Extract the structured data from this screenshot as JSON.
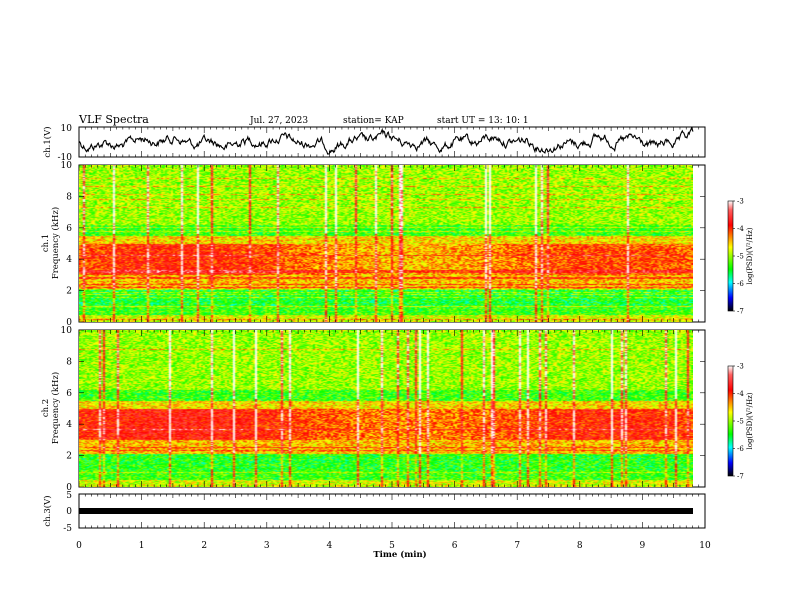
{
  "header": {
    "title": "VLF Spectra",
    "date": "Jul. 27, 2023",
    "station": "station= KAP",
    "start_ut": "start UT =  13: 10: 1"
  },
  "chart_data": [
    {
      "type": "line",
      "panel": "ch1-waveform",
      "ylabel": "ch.1(V)",
      "ylim": [
        -10,
        10
      ],
      "yticks": [
        "10",
        "-10"
      ],
      "xlim": [
        0,
        10
      ],
      "series_color": "#000000"
    },
    {
      "type": "heatmap",
      "panel": "ch1-spectrogram",
      "ylabel": "ch.1 Frequency (kHz)",
      "ylabel_top": "ch.1",
      "ylabel_main": "Frequency (kHz)",
      "ylim": [
        0,
        10
      ],
      "yticks": [
        "0",
        "2",
        "4",
        "6",
        "8",
        "10"
      ],
      "xlim": [
        0,
        9.8
      ],
      "colorbar": {
        "label": "log(PSD)(V²/Hz)",
        "range": [
          -7,
          -3
        ],
        "ticks": [
          "-3",
          "-4",
          "-5",
          "-6",
          "-7"
        ],
        "colors": [
          "#ff0000",
          "#ffff00",
          "#00ff00",
          "#00ffff",
          "#0000ff",
          "#000000"
        ]
      }
    },
    {
      "type": "heatmap",
      "panel": "ch2-spectrogram",
      "ylabel": "ch.2 Frequency (kHz)",
      "ylabel_top": "ch.2",
      "ylabel_main": "Frequency (kHz)",
      "ylim": [
        0,
        10
      ],
      "yticks": [
        "0",
        "2",
        "4",
        "6",
        "8",
        "10"
      ],
      "xlim": [
        0,
        9.8
      ],
      "colorbar": {
        "label": "log(PSD)(V²/Hz)",
        "range": [
          -7,
          -3
        ],
        "ticks": [
          "-3",
          "-4",
          "-5",
          "-6",
          "-7"
        ],
        "colors": [
          "#ff0000",
          "#ffff00",
          "#00ff00",
          "#00ffff",
          "#0000ff",
          "#000000"
        ]
      }
    },
    {
      "type": "line",
      "panel": "ch3-waveform",
      "ylabel": "ch.3(V)",
      "ylim": [
        -5,
        5
      ],
      "yticks": [
        "5",
        "0",
        "-5"
      ],
      "xlim": [
        0,
        10
      ],
      "series_color": "#000000"
    }
  ],
  "xaxis": {
    "label": "Time (min)",
    "range": [
      0,
      10
    ],
    "ticks": [
      "0",
      "1",
      "2",
      "3",
      "4",
      "5",
      "6",
      "7",
      "8",
      "9",
      "10"
    ]
  }
}
